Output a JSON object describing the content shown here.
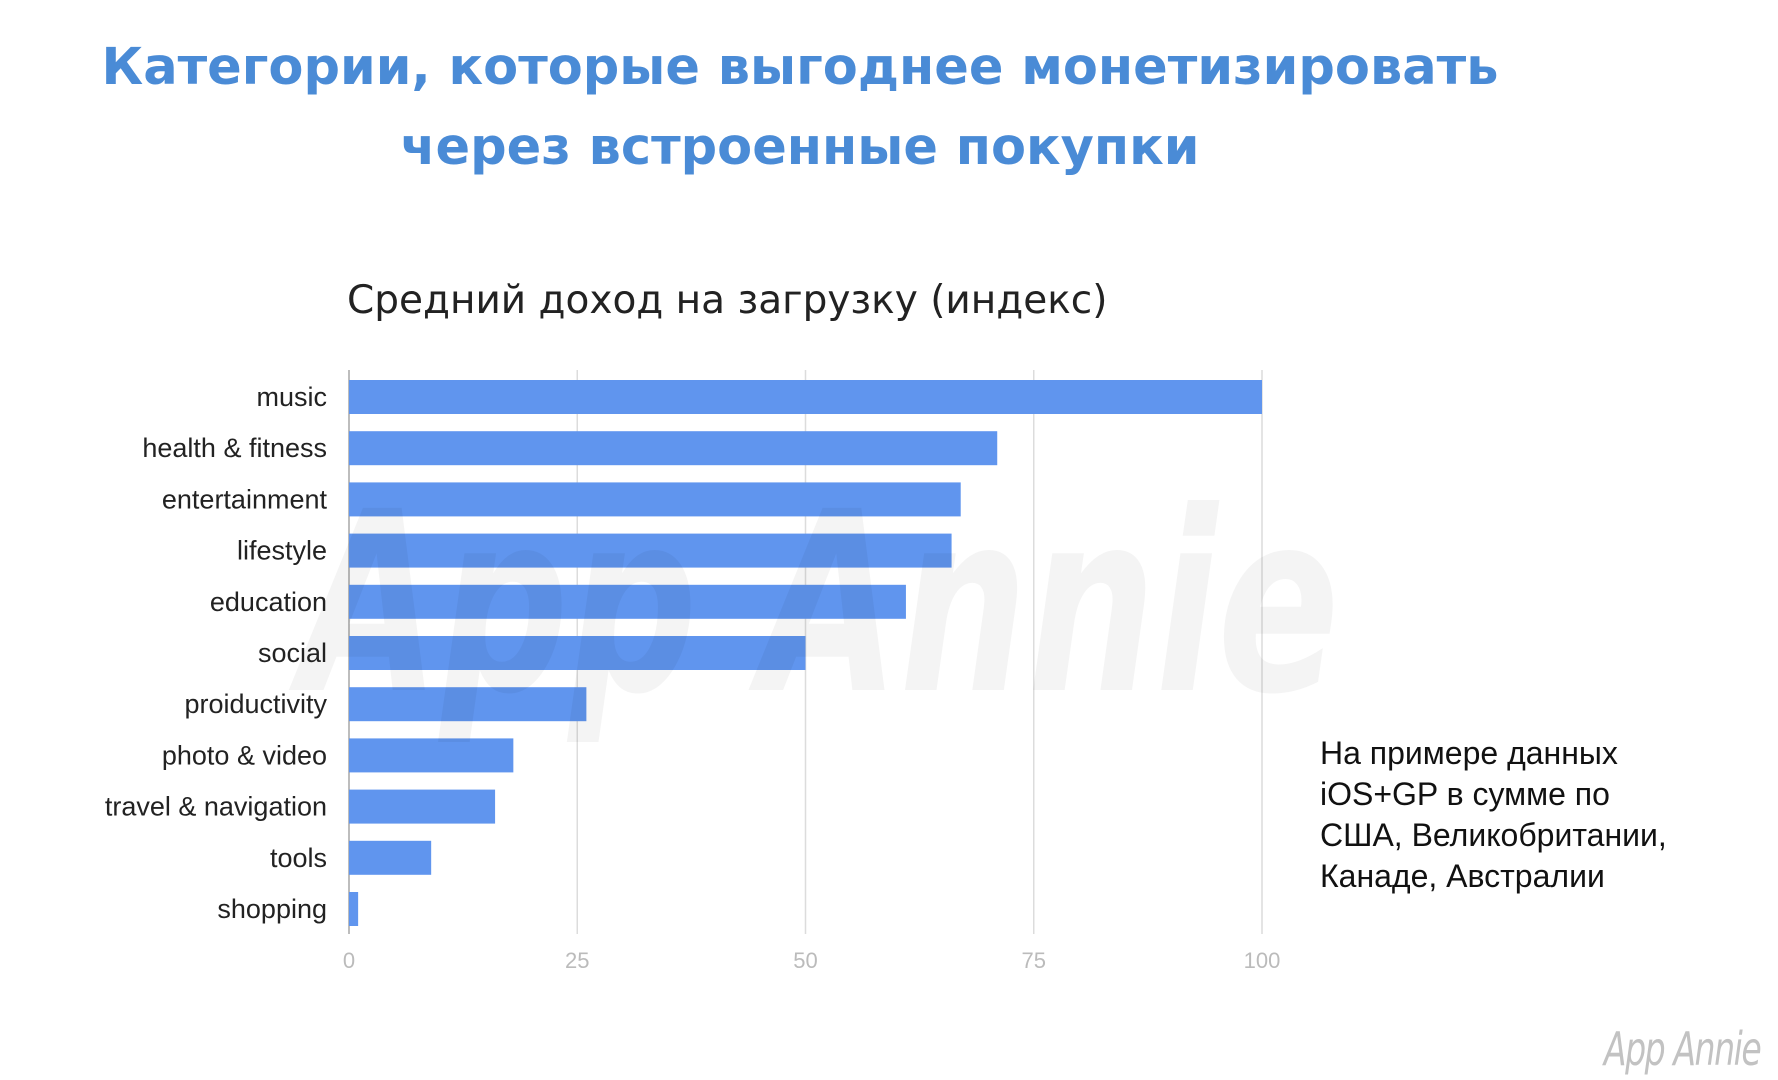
{
  "slide": {
    "title_line1": "Категории, которые выгоднее монетизировать",
    "title_line2": "через встроенные покупки",
    "note_lines": [
      "На примере данных",
      "iOS+GP в сумме по",
      "США, Великобритании,",
      "Канаде, Австралии"
    ],
    "logo_text": "App Annie"
  },
  "chart_data": {
    "type": "bar",
    "orientation": "horizontal",
    "title": "Средний доход на загрузку (индекс)",
    "categories": [
      "music",
      "health & fitness",
      "entertainment",
      "lifestyle",
      "education",
      "social",
      "proiductivity",
      "photo & video",
      "travel & navigation",
      "tools",
      "shopping"
    ],
    "values": [
      100,
      71,
      67,
      66,
      61,
      50,
      26,
      18,
      16,
      9,
      1
    ],
    "xlim": [
      0,
      100
    ],
    "xticks": [
      0,
      25,
      50,
      75,
      100
    ],
    "xtick_labels": [
      "0",
      "25",
      "50",
      "75",
      "100"
    ],
    "grid": true,
    "legend": "none",
    "watermark": "App Annie",
    "colors": {
      "bar": "#6095ee",
      "title_text": "#4a8bd6",
      "grid": "#dcdcdc",
      "tick_label": "#bbbbbb",
      "category_label": "#222222"
    }
  }
}
